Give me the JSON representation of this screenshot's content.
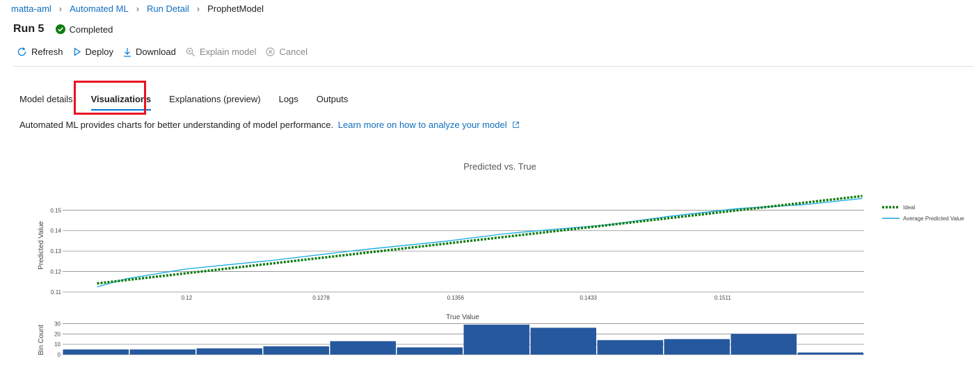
{
  "breadcrumb": {
    "items": [
      "matta-aml",
      "Automated ML",
      "Run Detail"
    ],
    "current": "ProphetModel"
  },
  "run": {
    "title": "Run 5",
    "status": "Completed",
    "status_color": "#107c10"
  },
  "toolbar": {
    "refresh": "Refresh",
    "deploy": "Deploy",
    "download": "Download",
    "explain": "Explain model",
    "cancel": "Cancel"
  },
  "tabs": {
    "items": [
      "Model details",
      "Visualizations",
      "Explanations (preview)",
      "Logs",
      "Outputs"
    ],
    "active": "Visualizations"
  },
  "description": {
    "text": "Automated ML provides charts for better understanding of model performance.",
    "link": "Learn more on how to analyze your model"
  },
  "chart_data": [
    {
      "type": "line",
      "title": "Predicted vs. True",
      "xlabel": "True Value",
      "ylabel": "Predicted Value",
      "x_ticks": [
        "0.12",
        "0.1278",
        "0.1356",
        "0.1433",
        "0.1511"
      ],
      "y_ticks": [
        "0.11",
        "0.12",
        "0.13",
        "0.14",
        "0.15"
      ],
      "xlim": [
        0.1128,
        0.1593
      ],
      "ylim": [
        0.11,
        0.1535
      ],
      "grid": true,
      "legend_position": "right",
      "series": [
        {
          "name": "Ideal",
          "style": "dotted",
          "color": "#107c10",
          "x": [
            0.1148,
            0.1592
          ],
          "y": [
            0.1142,
            0.1569
          ]
        },
        {
          "name": "Average Predicted Value",
          "style": "solid",
          "color": "#13a9e4",
          "x": [
            0.1148,
            0.1165,
            0.12,
            0.125,
            0.13,
            0.135,
            0.1385,
            0.1415,
            0.1443,
            0.148,
            0.152,
            0.1558,
            0.1592
          ],
          "y": [
            0.1125,
            0.1165,
            0.1213,
            0.1255,
            0.1305,
            0.1348,
            0.1385,
            0.1408,
            0.1427,
            0.147,
            0.1508,
            0.1527,
            0.1557
          ]
        }
      ]
    },
    {
      "type": "bar",
      "xlabel": "",
      "ylabel": "Bin Count",
      "y_ticks": [
        "0",
        "10",
        "20",
        "30"
      ],
      "ylim": [
        0,
        33
      ],
      "grid": true,
      "color": "#26589e",
      "values": [
        5,
        5,
        6,
        8,
        13,
        7,
        29,
        26,
        14,
        15,
        20,
        2
      ]
    }
  ]
}
